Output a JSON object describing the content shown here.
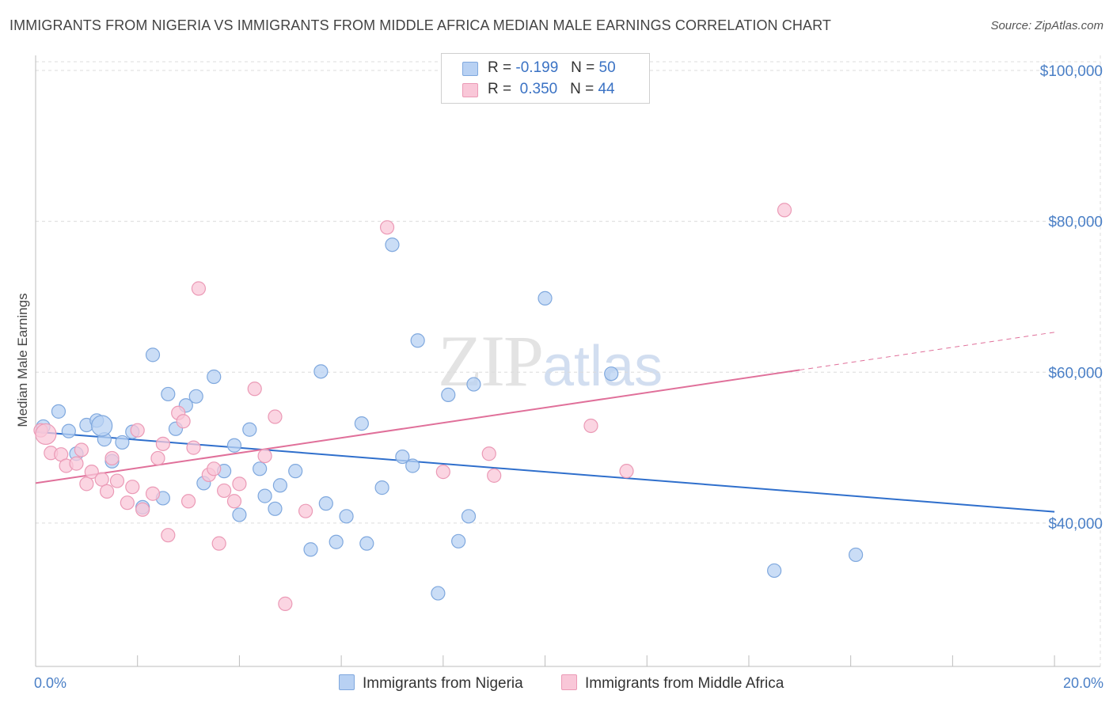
{
  "title": "IMMIGRANTS FROM NIGERIA VS IMMIGRANTS FROM MIDDLE AFRICA MEDIAN MALE EARNINGS CORRELATION CHART",
  "source": "Source: ZipAtlas.com",
  "watermark": {
    "zip": "ZIP",
    "atlas": "atlas"
  },
  "legend": {
    "row1": {
      "r_label": "R =",
      "r_value": "-0.199",
      "n_label": "N =",
      "n_value": "50"
    },
    "row2": {
      "r_label": "R =",
      "r_value": "0.350",
      "n_label": "N =",
      "n_value": "44"
    }
  },
  "colors": {
    "blue_fill": "#b8d1f3",
    "blue_stroke": "#7fa8de",
    "blue_line": "#2f6fcc",
    "pink_fill": "#f9c7d8",
    "pink_stroke": "#eb9ab6",
    "pink_line": "#e0709a",
    "grid": "#dcdcdc",
    "tick_text": "#4a7fc6"
  },
  "chart_data": {
    "type": "scatter",
    "title": "IMMIGRANTS FROM NIGERIA VS IMMIGRANTS FROM MIDDLE AFRICA MEDIAN MALE EARNINGS CORRELATION CHART",
    "xlabel": "",
    "ylabel": "Median Male Earnings",
    "xlim": [
      0,
      20.9
    ],
    "ylim": [
      21000,
      102000
    ],
    "x_tick_labels": [
      "0.0%",
      "20.0%"
    ],
    "y_ticks": [
      40000,
      60000,
      80000,
      100000
    ],
    "y_tick_labels": [
      "$40,000",
      "$60,000",
      "$80,000",
      "$100,000"
    ],
    "series": [
      {
        "name": "Immigrants from Nigeria",
        "color": "#b8d1f3",
        "r": "-0.199",
        "n": "50",
        "points": [
          [
            0.15,
            52800
          ],
          [
            0.45,
            54800
          ],
          [
            0.65,
            52200
          ],
          [
            0.8,
            49200
          ],
          [
            1.0,
            53000
          ],
          [
            1.2,
            53600
          ],
          [
            1.35,
            51100
          ],
          [
            1.5,
            48200
          ],
          [
            1.7,
            50700
          ],
          [
            1.9,
            52100
          ],
          [
            2.1,
            42100
          ],
          [
            2.3,
            62300
          ],
          [
            2.5,
            43300
          ],
          [
            2.6,
            57100
          ],
          [
            2.75,
            52500
          ],
          [
            2.95,
            55600
          ],
          [
            3.15,
            56800
          ],
          [
            3.3,
            45300
          ],
          [
            3.5,
            59400
          ],
          [
            3.7,
            46900
          ],
          [
            3.9,
            50300
          ],
          [
            4.0,
            41100
          ],
          [
            4.2,
            52400
          ],
          [
            4.4,
            47200
          ],
          [
            4.5,
            43600
          ],
          [
            4.7,
            41900
          ],
          [
            4.8,
            45000
          ],
          [
            5.1,
            46900
          ],
          [
            5.4,
            36500
          ],
          [
            5.6,
            60100
          ],
          [
            5.7,
            42600
          ],
          [
            5.9,
            37500
          ],
          [
            6.1,
            40900
          ],
          [
            6.4,
            53200
          ],
          [
            6.5,
            37300
          ],
          [
            6.8,
            44700
          ],
          [
            7.0,
            76900
          ],
          [
            7.2,
            48800
          ],
          [
            7.4,
            47600
          ],
          [
            7.5,
            64200
          ],
          [
            7.9,
            30700
          ],
          [
            8.1,
            57000
          ],
          [
            8.3,
            37600
          ],
          [
            8.5,
            40900
          ],
          [
            8.6,
            58400
          ],
          [
            10.0,
            69800
          ],
          [
            11.3,
            59800
          ],
          [
            14.5,
            33700
          ],
          [
            16.1,
            35800
          ],
          [
            1.3,
            52900
          ]
        ]
      },
      {
        "name": "Immigrants from Middle Africa",
        "color": "#f9c7d8",
        "r": "0.350",
        "n": "44",
        "points": [
          [
            0.1,
            52300
          ],
          [
            0.3,
            49300
          ],
          [
            0.5,
            49100
          ],
          [
            0.6,
            47600
          ],
          [
            0.8,
            47900
          ],
          [
            0.9,
            49700
          ],
          [
            1.0,
            45200
          ],
          [
            1.1,
            46800
          ],
          [
            1.3,
            45800
          ],
          [
            1.4,
            44200
          ],
          [
            1.5,
            48600
          ],
          [
            1.6,
            45600
          ],
          [
            1.8,
            42700
          ],
          [
            1.9,
            44800
          ],
          [
            2.0,
            52300
          ],
          [
            2.1,
            41800
          ],
          [
            2.3,
            43900
          ],
          [
            2.4,
            48600
          ],
          [
            2.5,
            50500
          ],
          [
            2.6,
            38400
          ],
          [
            2.8,
            54600
          ],
          [
            2.9,
            53500
          ],
          [
            3.0,
            42900
          ],
          [
            3.1,
            50000
          ],
          [
            3.2,
            71100
          ],
          [
            3.4,
            46400
          ],
          [
            3.5,
            47200
          ],
          [
            3.6,
            37300
          ],
          [
            3.7,
            44300
          ],
          [
            3.9,
            42900
          ],
          [
            4.0,
            45200
          ],
          [
            4.3,
            57800
          ],
          [
            4.5,
            48900
          ],
          [
            4.7,
            54100
          ],
          [
            4.9,
            29300
          ],
          [
            5.3,
            41600
          ],
          [
            6.9,
            79200
          ],
          [
            8.0,
            46800
          ],
          [
            8.9,
            49200
          ],
          [
            9.0,
            46300
          ],
          [
            10.9,
            52900
          ],
          [
            11.6,
            46900
          ],
          [
            14.7,
            81500
          ],
          [
            0.2,
            51800
          ]
        ]
      }
    ],
    "trendlines": [
      {
        "series": "Immigrants from Nigeria",
        "x": [
          0,
          20
        ],
        "y": [
          52100,
          41500
        ],
        "dashed_from": null
      },
      {
        "series": "Immigrants from Middle Africa",
        "x": [
          0,
          15.0
        ],
        "y": [
          45300,
          60300
        ],
        "dashed_to_x": 20,
        "dashed_to_y": 65300
      }
    ]
  },
  "bottom_legend": {
    "item1": "Immigrants from Nigeria",
    "item2": "Immigrants from Middle Africa"
  }
}
